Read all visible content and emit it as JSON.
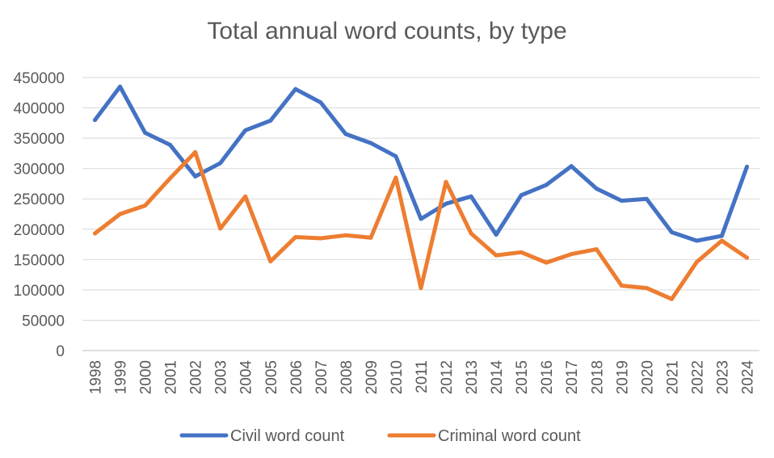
{
  "chart_data": {
    "type": "line",
    "title": "Total annual word counts, by type",
    "xlabel": "",
    "ylabel": "",
    "x": [
      "1998",
      "1999",
      "2000",
      "2001",
      "2002",
      "2003",
      "2004",
      "2005",
      "2006",
      "2007",
      "2008",
      "2009",
      "2010",
      "2011",
      "2012",
      "2013",
      "2014",
      "2015",
      "2016",
      "2017",
      "2018",
      "2019",
      "2020",
      "2021",
      "2022",
      "2023",
      "2024"
    ],
    "ylim": [
      0,
      450000
    ],
    "yticks": [
      "0",
      "50000",
      "100000",
      "150000",
      "200000",
      "250000",
      "300000",
      "350000",
      "400000",
      "450000"
    ],
    "grid": true,
    "legend_position": "bottom",
    "series": [
      {
        "name": "Civil word count",
        "color": "#4472C4",
        "values": [
          380000,
          435000,
          359000,
          339000,
          287000,
          309000,
          363000,
          379000,
          431000,
          409000,
          357000,
          342000,
          320000,
          217000,
          242000,
          254000,
          191000,
          256000,
          273000,
          304000,
          267000,
          247000,
          250000,
          195000,
          181000,
          189000,
          303000
        ]
      },
      {
        "name": "Criminal word count",
        "color": "#ED7D31",
        "values": [
          193000,
          225000,
          239000,
          284000,
          327000,
          201000,
          254000,
          147000,
          187000,
          185000,
          190000,
          186000,
          285000,
          103000,
          278000,
          193000,
          157000,
          162000,
          145000,
          159000,
          167000,
          107000,
          103000,
          85000,
          146000,
          181000,
          153000
        ]
      }
    ]
  }
}
